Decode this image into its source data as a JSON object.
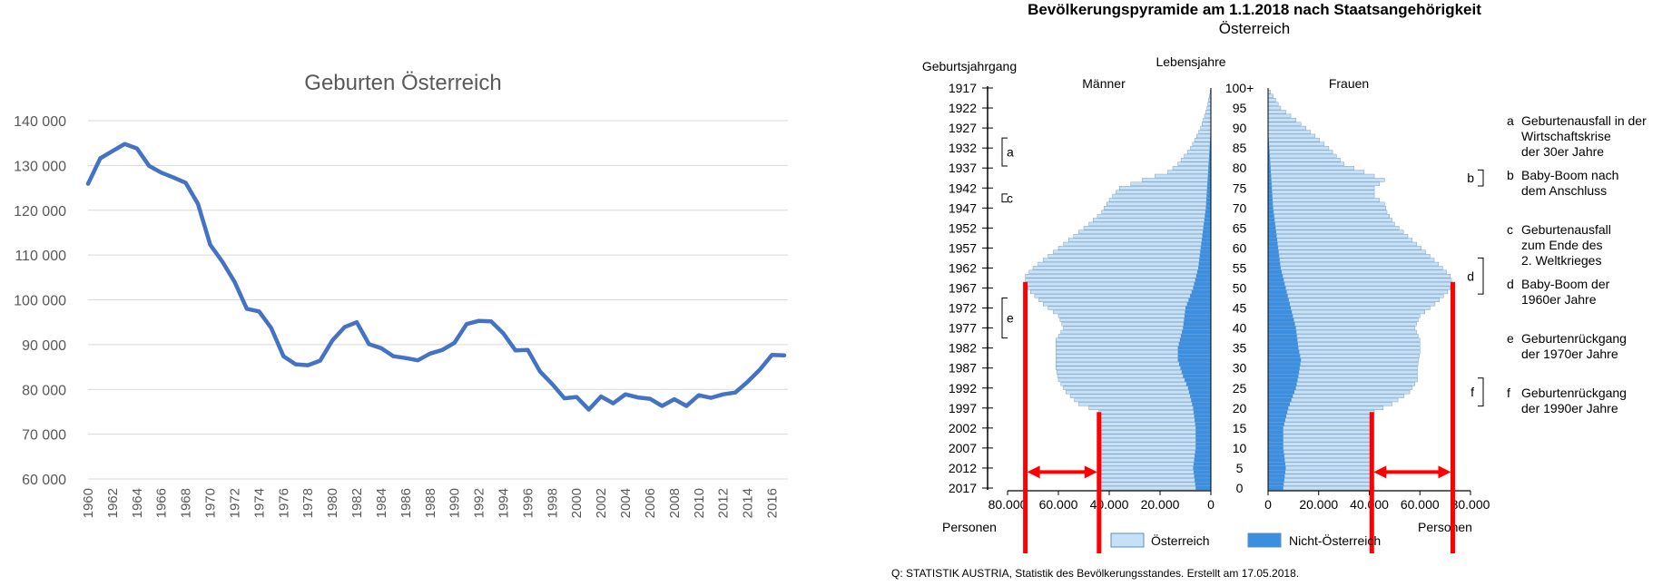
{
  "chart_data": [
    {
      "type": "line",
      "title": "Geburten Österreich",
      "xlabel": "",
      "ylabel": "",
      "ylim": [
        60000,
        140000
      ],
      "yticks": [
        "60 000",
        "70 000",
        "80 000",
        "90 000",
        "100 000",
        "110 000",
        "120 000",
        "130 000",
        "140 000"
      ],
      "xticks": [
        "1960",
        "1962",
        "1964",
        "1966",
        "1968",
        "1970",
        "1972",
        "1974",
        "1976",
        "1978",
        "1980",
        "1982",
        "1984",
        "1986",
        "1988",
        "1990",
        "1992",
        "1994",
        "1996",
        "1998",
        "2000",
        "2002",
        "2004",
        "2006",
        "2008",
        "2010",
        "2012",
        "2014",
        "2016"
      ],
      "grid": true,
      "line_color": "#4472C4",
      "x": [
        1960,
        1961,
        1962,
        1963,
        1964,
        1965,
        1966,
        1967,
        1968,
        1969,
        1970,
        1971,
        1972,
        1973,
        1974,
        1975,
        1976,
        1977,
        1978,
        1979,
        1980,
        1981,
        1982,
        1983,
        1984,
        1985,
        1986,
        1987,
        1988,
        1989,
        1990,
        1991,
        1992,
        1993,
        1994,
        1995,
        1996,
        1997,
        1998,
        1999,
        2000,
        2001,
        2002,
        2003,
        2004,
        2005,
        2006,
        2007,
        2008,
        2009,
        2010,
        2011,
        2012,
        2013,
        2014,
        2015,
        2016,
        2017
      ],
      "values": [
        125900,
        131600,
        133200,
        134800,
        133800,
        129900,
        128400,
        127300,
        126100,
        121400,
        112300,
        108500,
        104000,
        98000,
        97400,
        93700,
        87400,
        85600,
        85400,
        86400,
        90900,
        93900,
        95000,
        90100,
        89200,
        87400,
        87000,
        86500,
        88000,
        88800,
        90400,
        94600,
        95300,
        95200,
        92500,
        88700,
        88800,
        84000,
        81200,
        78000,
        78300,
        75500,
        78400,
        76900,
        78900,
        78200,
        77900,
        76300,
        77800,
        76300,
        78700,
        78100,
        78900,
        79300,
        81700,
        84400,
        87700,
        87600
      ]
    },
    {
      "type": "bar",
      "title": "Bevölkerungspyramide am 1.1.2018 nach Staatsangehörigkeit",
      "subtitle": "Österreich",
      "label_birth_year": "Geburtsjahrgang",
      "label_age": "Lebensjahre",
      "label_men": "Männer",
      "label_women": "Frauen",
      "label_persons": "Personen",
      "year_ticks": [
        "1917",
        "1922",
        "1927",
        "1932",
        "1937",
        "1942",
        "1947",
        "1952",
        "1957",
        "1962",
        "1967",
        "1972",
        "1977",
        "1982",
        "1987",
        "1992",
        "1997",
        "2002",
        "2007",
        "2012",
        "2017"
      ],
      "age_ticks": [
        "100+",
        "95",
        "90",
        "85",
        "80",
        "75",
        "70",
        "65",
        "60",
        "55",
        "50",
        "45",
        "40",
        "35",
        "30",
        "25",
        "20",
        "15",
        "10",
        "5",
        "0"
      ],
      "x_ticks_left": [
        "80.000",
        "60.000",
        "40.000",
        "20.000",
        "0"
      ],
      "x_ticks_right": [
        "0",
        "20.000",
        "40.000",
        "60.000",
        "80.000"
      ],
      "xlim": [
        0,
        80000
      ],
      "series_names": [
        "Österreich",
        "Nicht-Österreich"
      ],
      "series_colors": [
        "#C6E0F6",
        "#3C8FE0"
      ],
      "men_total_anchors": [
        [
          0,
          44000
        ],
        [
          4,
          43000
        ],
        [
          9,
          43000
        ],
        [
          14,
          43000
        ],
        [
          19,
          44000
        ],
        [
          21,
          52000
        ],
        [
          24,
          57000
        ],
        [
          27,
          60000
        ],
        [
          30,
          61000
        ],
        [
          34,
          61000
        ],
        [
          37,
          61000
        ],
        [
          40,
          58000
        ],
        [
          43,
          60000
        ],
        [
          46,
          66000
        ],
        [
          49,
          71000
        ],
        [
          51,
          73000
        ],
        [
          53,
          73000
        ],
        [
          55,
          70000
        ],
        [
          58,
          64000
        ],
        [
          62,
          56000
        ],
        [
          66,
          48000
        ],
        [
          69,
          43000
        ],
        [
          72,
          40000
        ],
        [
          75,
          36000
        ],
        [
          77,
          27000
        ],
        [
          79,
          17000
        ],
        [
          81,
          13000
        ],
        [
          85,
          8000
        ],
        [
          90,
          4000
        ],
        [
          95,
          1500
        ],
        [
          100,
          0
        ]
      ],
      "men_foreign_anchors": [
        [
          0,
          6000
        ],
        [
          5,
          7000
        ],
        [
          10,
          6000
        ],
        [
          15,
          6000
        ],
        [
          20,
          7000
        ],
        [
          25,
          9000
        ],
        [
          28,
          11000
        ],
        [
          32,
          13000
        ],
        [
          35,
          13000
        ],
        [
          40,
          11000
        ],
        [
          45,
          10000
        ],
        [
          50,
          7000
        ],
        [
          55,
          5000
        ],
        [
          60,
          4000
        ],
        [
          70,
          2000
        ],
        [
          80,
          1000
        ],
        [
          90,
          0
        ],
        [
          100,
          0
        ]
      ],
      "women_total_anchors": [
        [
          0,
          42000
        ],
        [
          4,
          41000
        ],
        [
          9,
          41000
        ],
        [
          14,
          41000
        ],
        [
          19,
          42000
        ],
        [
          21,
          49000
        ],
        [
          24,
          56000
        ],
        [
          27,
          59000
        ],
        [
          30,
          59000
        ],
        [
          34,
          60000
        ],
        [
          37,
          60000
        ],
        [
          40,
          58000
        ],
        [
          43,
          60000
        ],
        [
          46,
          66000
        ],
        [
          49,
          71000
        ],
        [
          51,
          73000
        ],
        [
          53,
          72000
        ],
        [
          55,
          69000
        ],
        [
          58,
          64000
        ],
        [
          62,
          57000
        ],
        [
          66,
          50000
        ],
        [
          69,
          47000
        ],
        [
          71,
          46000
        ],
        [
          73,
          42000
        ],
        [
          75,
          42000
        ],
        [
          77,
          46000
        ],
        [
          79,
          38000
        ],
        [
          81,
          30000
        ],
        [
          85,
          24000
        ],
        [
          90,
          15000
        ],
        [
          95,
          5000
        ],
        [
          100,
          0
        ]
      ],
      "women_foreign_anchors": [
        [
          0,
          6000
        ],
        [
          5,
          7000
        ],
        [
          10,
          6000
        ],
        [
          15,
          6000
        ],
        [
          20,
          8000
        ],
        [
          25,
          11000
        ],
        [
          28,
          12000
        ],
        [
          32,
          13000
        ],
        [
          35,
          12000
        ],
        [
          40,
          11000
        ],
        [
          45,
          9000
        ],
        [
          50,
          7000
        ],
        [
          55,
          5000
        ],
        [
          60,
          4000
        ],
        [
          70,
          2000
        ],
        [
          80,
          1000
        ],
        [
          90,
          0
        ],
        [
          100,
          0
        ]
      ],
      "annotations": [
        {
          "key": "a",
          "label_line1": "Geburtenausfall in der",
          "label_line2": "Wirtschaftskrise",
          "label_line3": "der  30er Jahre",
          "ages": [
            81,
            87
          ],
          "side": "men"
        },
        {
          "key": "b",
          "label_line1": "Baby-Boom nach",
          "label_line2": "dem Anschluss",
          "ages": [
            76,
            79
          ],
          "side": "women"
        },
        {
          "key": "c",
          "label_line1": "Geburtenausfall",
          "label_line2": "zum Ende des",
          "label_line3": "2. Weltkrieges",
          "ages": [
            72,
            73
          ],
          "side": "men"
        },
        {
          "key": "d",
          "label_line1": "Baby-Boom der",
          "label_line2": "1960er Jahre",
          "ages": [
            49,
            57
          ],
          "side": "women"
        },
        {
          "key": "e",
          "label_line1": "Geburtenrückgang",
          "label_line2": "der 1970er Jahre",
          "ages": [
            38,
            47
          ],
          "side": "men"
        },
        {
          "key": "f",
          "label_line1": "Geburtenrückgang",
          "label_line2": "der 1990er Jahre",
          "ages": [
            21,
            27
          ],
          "side": "women"
        }
      ],
      "red_marker_values": {
        "men_outer": 73000,
        "men_inner": 44000,
        "women_inner": 41000,
        "women_outer": 73000
      },
      "red_color": "#FF0000",
      "source": "Q: STATISTIK AUSTRIA, Statistik des Bevölkerungsstandes. Erstellt am 17.05.2018."
    }
  ]
}
